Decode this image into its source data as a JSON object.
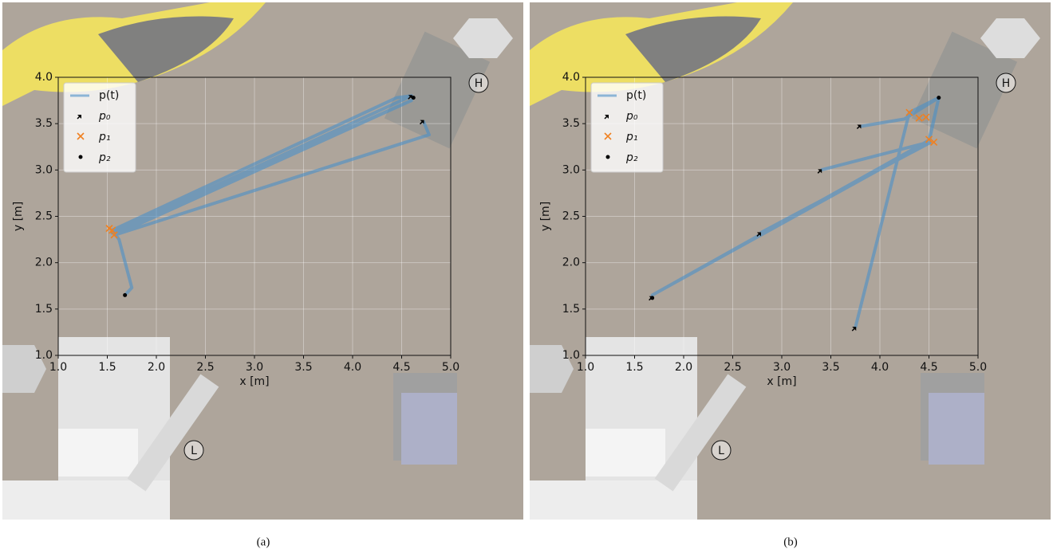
{
  "chart_data": [
    {
      "type": "line",
      "caption": "(a)",
      "xlabel": "x [m]",
      "ylabel": "y [m]",
      "xlim": [
        1.0,
        5.0
      ],
      "ylim": [
        1.0,
        4.0
      ],
      "grid": true,
      "legend": "upper left",
      "xticks": [
        {
          "value": 1.0,
          "label": "1.0"
        },
        {
          "value": 1.5,
          "label": "1.5"
        },
        {
          "value": 2.0,
          "label": "2.0"
        },
        {
          "value": 2.5,
          "label": "2.5"
        },
        {
          "value": 3.0,
          "label": "3.0"
        },
        {
          "value": 3.5,
          "label": "3.5"
        },
        {
          "value": 4.0,
          "label": "4.0"
        },
        {
          "value": 4.5,
          "label": "4.5"
        },
        {
          "value": 5.0,
          "label": "5.0"
        }
      ],
      "yticks": [
        {
          "value": 1.0,
          "label": "1.0"
        },
        {
          "value": 1.5,
          "label": "1.5"
        },
        {
          "value": 2.0,
          "label": "2.0"
        },
        {
          "value": 2.5,
          "label": "2.5"
        },
        {
          "value": 3.0,
          "label": "3.0"
        },
        {
          "value": 3.5,
          "label": "3.5"
        },
        {
          "value": 4.0,
          "label": "4.0"
        }
      ],
      "annotations": [
        "H",
        "L"
      ],
      "series": [
        {
          "name": "p(t)",
          "marker": "line",
          "color": "#4a90c8",
          "x": [
            1.68,
            1.75,
            1.62,
            1.55,
            4.45,
            4.6,
            1.55,
            4.6,
            1.58,
            4.78,
            4.72
          ],
          "y": [
            1.65,
            1.73,
            2.25,
            2.35,
            3.78,
            3.8,
            2.32,
            3.75,
            2.3,
            3.38,
            3.53
          ]
        },
        {
          "name": "p₀",
          "marker": "arrow",
          "color": "#000000",
          "x": [
            4.6,
            4.72
          ],
          "y": [
            3.8,
            3.53
          ]
        },
        {
          "name": "p₁",
          "marker": "x",
          "color": "#f08020",
          "x": [
            1.55,
            1.57,
            1.52
          ],
          "y": [
            2.35,
            2.3,
            2.37
          ]
        },
        {
          "name": "p₂",
          "marker": "dot",
          "color": "#000000",
          "x": [
            1.68,
            4.62
          ],
          "y": [
            1.65,
            3.78
          ]
        }
      ]
    },
    {
      "type": "line",
      "caption": "(b)",
      "xlabel": "x [m]",
      "ylabel": "y [m]",
      "xlim": [
        1.0,
        5.0
      ],
      "ylim": [
        1.0,
        4.0
      ],
      "grid": true,
      "legend": "upper left",
      "xticks": [
        {
          "value": 1.0,
          "label": "1.0"
        },
        {
          "value": 1.5,
          "label": "1.5"
        },
        {
          "value": 2.0,
          "label": "2.0"
        },
        {
          "value": 2.5,
          "label": "2.5"
        },
        {
          "value": 3.0,
          "label": "3.0"
        },
        {
          "value": 3.5,
          "label": "3.5"
        },
        {
          "value": 4.0,
          "label": "4.0"
        },
        {
          "value": 4.5,
          "label": "4.5"
        },
        {
          "value": 5.0,
          "label": "5.0"
        }
      ],
      "yticks": [
        {
          "value": 1.0,
          "label": "1.0"
        },
        {
          "value": 1.5,
          "label": "1.5"
        },
        {
          "value": 2.0,
          "label": "2.0"
        },
        {
          "value": 2.5,
          "label": "2.5"
        },
        {
          "value": 3.0,
          "label": "3.0"
        },
        {
          "value": 3.5,
          "label": "3.5"
        },
        {
          "value": 4.0,
          "label": "4.0"
        }
      ],
      "annotations": [
        "H",
        "L"
      ],
      "series": [
        {
          "name": "p(t)",
          "marker": "line",
          "color": "#4a90c8",
          "x": [
            3.75,
            4.3,
            4.6,
            4.5,
            1.68,
            4.5,
            4.6,
            4.25,
            3.8,
            null,
            3.4,
            4.5,
            null,
            2.78,
            4.52
          ],
          "y": [
            1.3,
            3.62,
            3.78,
            3.32,
            1.65,
            3.3,
            3.78,
            3.55,
            3.47,
            null,
            3.0,
            3.3,
            null,
            2.32,
            3.3
          ]
        },
        {
          "name": "p₀",
          "marker": "arrow",
          "color": "#000000",
          "x": [
            3.8,
            3.4,
            2.78,
            3.75,
            1.68
          ],
          "y": [
            3.48,
            3.0,
            2.32,
            1.3,
            1.63
          ]
        },
        {
          "name": "p₁",
          "marker": "x",
          "color": "#f08020",
          "x": [
            4.3,
            4.4,
            4.47,
            4.5,
            4.55
          ],
          "y": [
            3.62,
            3.56,
            3.57,
            3.33,
            3.3
          ]
        },
        {
          "name": "p₂",
          "marker": "dot",
          "color": "#000000",
          "x": [
            4.6,
            1.68
          ],
          "y": [
            3.78,
            1.62
          ]
        }
      ]
    }
  ]
}
